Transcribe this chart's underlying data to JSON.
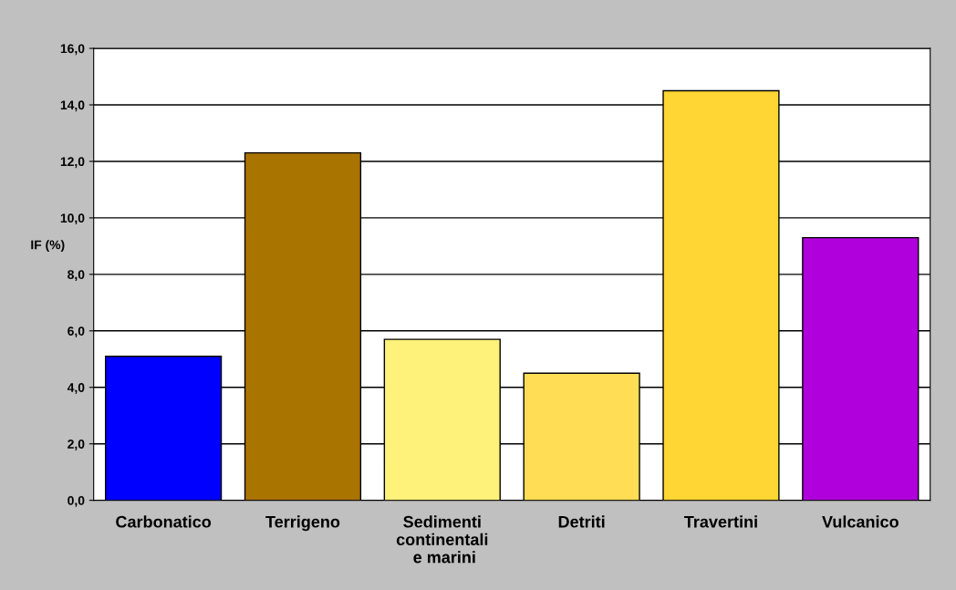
{
  "chart_data": {
    "type": "bar",
    "ylabel": "IF (%)",
    "categories": [
      "Carbonatico",
      "Terrigeno",
      "Sedimenti\ncontinentali\n e marini",
      "Detriti",
      "Travertini",
      "Vulcanico"
    ],
    "values": [
      5.1,
      12.3,
      5.7,
      4.5,
      14.5,
      9.3
    ],
    "colors": [
      "#0000ff",
      "#aa7400",
      "#fff27a",
      "#ffdd55",
      "#ffd633",
      "#b000dc"
    ],
    "ylim": [
      0,
      16
    ],
    "yticks": [
      {
        "value": 0,
        "label": "0,0"
      },
      {
        "value": 2,
        "label": "2,0"
      },
      {
        "value": 4,
        "label": "4,0"
      },
      {
        "value": 6,
        "label": "6,0"
      },
      {
        "value": 8,
        "label": "8,0"
      },
      {
        "value": 10,
        "label": "10,0"
      },
      {
        "value": 12,
        "label": "12,0"
      },
      {
        "value": 14,
        "label": "14,0"
      },
      {
        "value": 16,
        "label": "16,0"
      }
    ],
    "grid": "y",
    "legend": false
  }
}
